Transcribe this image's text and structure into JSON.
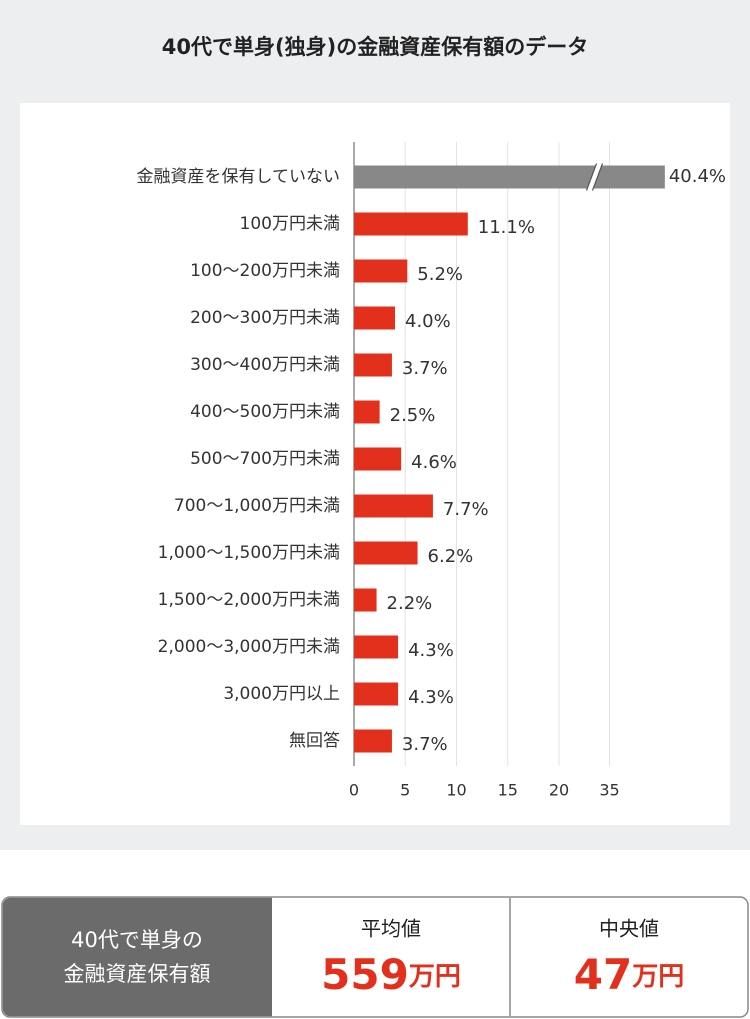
{
  "chart_data": {
    "type": "bar",
    "orientation": "horizontal",
    "title": "40代で単身(独身)の金融資産保有額のデータ",
    "categories": [
      "金融資産を保有していない",
      "100万円未満",
      "100〜200万円未満",
      "200〜300万円未満",
      "300〜400万円未満",
      "400〜500万円未満",
      "500〜700万円未満",
      "700〜1,000万円未満",
      "1,000〜1,500万円未満",
      "1,500〜2,000万円未満",
      "2,000〜3,000万円未満",
      "3,000万円以上",
      "無回答"
    ],
    "values": [
      40.4,
      11.1,
      5.2,
      4.0,
      3.7,
      2.5,
      4.6,
      7.7,
      6.2,
      2.2,
      4.3,
      4.3,
      3.7
    ],
    "value_labels": [
      "40.4%",
      "11.1%",
      "5.2%",
      "4.0%",
      "3.7%",
      "2.5%",
      "4.6%",
      "7.7%",
      "6.2%",
      "2.2%",
      "4.3%",
      "4.3%",
      "3.7%"
    ],
    "colors": [
      "#888888",
      "#e2301c",
      "#e2301c",
      "#e2301c",
      "#e2301c",
      "#e2301c",
      "#e2301c",
      "#e2301c",
      "#e2301c",
      "#e2301c",
      "#e2301c",
      "#e2301c",
      "#e2301c"
    ],
    "xlim": [
      0,
      41
    ],
    "xbreak": [
      22,
      35
    ],
    "xticks": [
      0,
      5,
      10,
      15,
      20,
      35
    ],
    "grid": true
  },
  "summary": {
    "heading": [
      "40代で単身の",
      "金融資産保有額"
    ],
    "items": [
      {
        "label": "平均値",
        "value": 559,
        "unit": "万円"
      },
      {
        "label": "中央値",
        "value": 47,
        "unit": "万円"
      }
    ]
  }
}
